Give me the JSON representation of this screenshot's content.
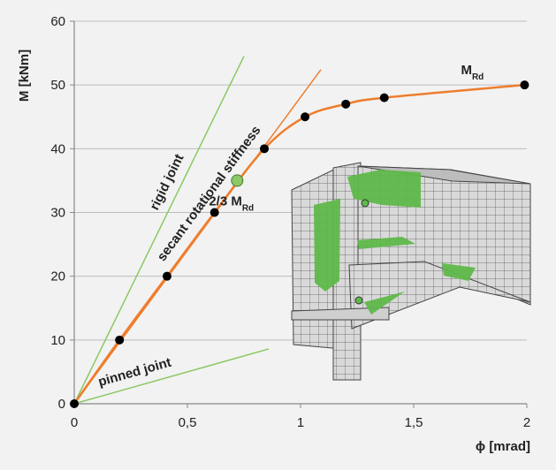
{
  "chart_data": {
    "type": "line",
    "title": "",
    "xlabel": "ϕ [mrad]",
    "ylabel": "M [kNm]",
    "xlim": [
      0,
      2
    ],
    "ylim": [
      0,
      60
    ],
    "x_ticks": [
      0,
      0.5,
      1,
      1.5,
      2
    ],
    "x_tick_labels": [
      "0",
      "0,5",
      "1",
      "1,5",
      "2"
    ],
    "y_ticks": [
      0,
      10,
      20,
      30,
      40,
      50,
      60
    ],
    "y_tick_labels": [
      "0",
      "10",
      "20",
      "30",
      "40",
      "50",
      "60"
    ],
    "grid": "horizontal",
    "legend": "none",
    "series": [
      {
        "color": "#ee7d2c",
        "x": [
          0,
          0.2,
          0.41,
          0.62,
          0.84,
          1.02,
          1.2,
          1.37,
          1.99
        ],
        "y": [
          0,
          10,
          20,
          30,
          40,
          45,
          47,
          48,
          50
        ]
      }
    ],
    "reference_lines": [
      {
        "label": "rigid joint",
        "color": "#8cc864",
        "x": [
          0,
          0.75
        ],
        "y": [
          0,
          54.5
        ]
      },
      {
        "label": "secant rotational stiffness",
        "color": "#ee7d2c",
        "x": [
          0,
          1.09
        ],
        "y": [
          0,
          52.4
        ]
      },
      {
        "label": "pinned joint",
        "color": "#8cc864",
        "x": [
          0,
          0.86
        ],
        "y": [
          0,
          8.6
        ]
      }
    ],
    "highlight_point": {
      "label": "2/3 M",
      "label_sub": "Rd",
      "x": 0.72,
      "y": 35,
      "color": "#8cc864"
    },
    "end_label": {
      "text": "M",
      "sub": "Rd"
    },
    "inset": "finite element mesh of beam-to-column joint"
  }
}
